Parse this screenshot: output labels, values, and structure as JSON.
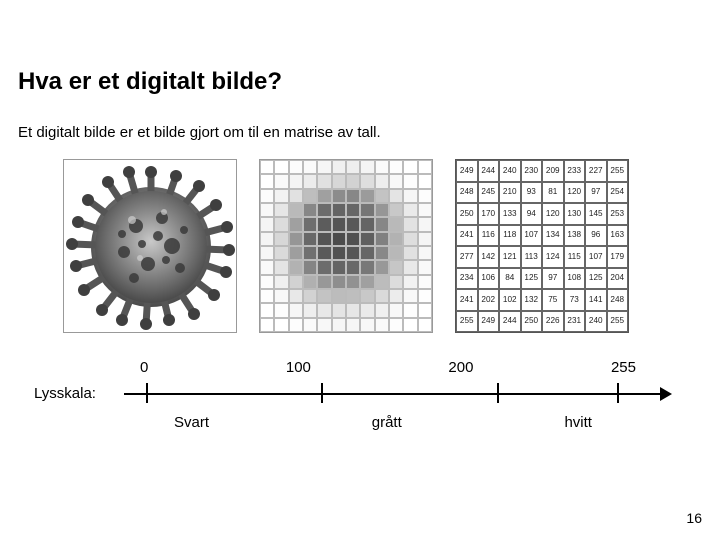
{
  "title": "Hva er et digitalt bilde?",
  "subtitle": "Et digitalt bilde er et bilde gjort om til en matrise av tall.",
  "scale": {
    "label": "Lysskala:",
    "ticks": [
      "0",
      "100",
      "200",
      "255"
    ],
    "categories": [
      "Svart",
      "grått",
      "hvitt"
    ],
    "tick_positions_pct": [
      4,
      36,
      68,
      90
    ]
  },
  "pixel_grid": {
    "size": 12,
    "cells": [
      [
        255,
        255,
        252,
        250,
        246,
        240,
        238,
        244,
        250,
        253,
        255,
        255
      ],
      [
        255,
        250,
        244,
        236,
        225,
        215,
        210,
        222,
        238,
        248,
        253,
        255
      ],
      [
        252,
        242,
        225,
        190,
        160,
        140,
        135,
        155,
        195,
        228,
        246,
        253
      ],
      [
        248,
        230,
        185,
        135,
        108,
        100,
        102,
        118,
        150,
        200,
        234,
        249
      ],
      [
        245,
        220,
        160,
        110,
        92,
        85,
        88,
        100,
        135,
        185,
        226,
        246
      ],
      [
        244,
        215,
        150,
        104,
        84,
        76,
        80,
        95,
        128,
        178,
        222,
        245
      ],
      [
        246,
        218,
        158,
        112,
        90,
        82,
        86,
        102,
        136,
        184,
        225,
        247
      ],
      [
        249,
        228,
        178,
        132,
        108,
        100,
        104,
        120,
        152,
        198,
        232,
        249
      ],
      [
        252,
        240,
        210,
        176,
        152,
        142,
        145,
        160,
        188,
        220,
        242,
        252
      ],
      [
        254,
        248,
        232,
        210,
        195,
        188,
        190,
        200,
        218,
        236,
        248,
        254
      ],
      [
        255,
        253,
        246,
        238,
        232,
        228,
        230,
        234,
        240,
        248,
        253,
        255
      ],
      [
        255,
        255,
        253,
        250,
        248,
        246,
        246,
        248,
        250,
        253,
        255,
        255
      ]
    ]
  },
  "matrix": {
    "rows": [
      [
        249,
        244,
        240,
        230,
        209,
        233,
        227,
        255
      ],
      [
        248,
        245,
        210,
        93,
        81,
        120,
        97,
        254
      ],
      [
        250,
        170,
        133,
        94,
        120,
        130,
        145,
        253
      ],
      [
        241,
        116,
        118,
        107,
        134,
        138,
        96,
        163
      ],
      [
        277,
        142,
        121,
        113,
        124,
        115,
        107,
        179
      ],
      [
        234,
        106,
        84,
        125,
        97,
        108,
        125,
        204
      ],
      [
        241,
        202,
        102,
        132,
        75,
        73,
        141,
        248
      ],
      [
        255,
        249,
        244,
        250,
        226,
        231,
        240,
        255
      ]
    ]
  },
  "page_number": "16",
  "colors": {
    "bg": "#ffffff",
    "text": "#000000",
    "grid_border": "#bbbbbb",
    "matrix_border": "#666666"
  }
}
